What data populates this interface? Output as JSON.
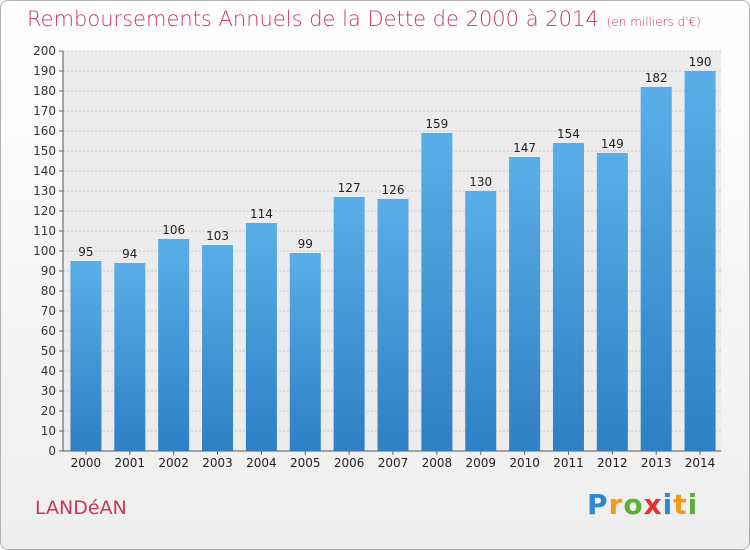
{
  "chart_data": {
    "type": "bar",
    "title": "Remboursements Annuels de la Dette de 2000 à 2014",
    "unit_label": "(en milliers d'€)",
    "categories": [
      "2000",
      "2001",
      "2002",
      "2003",
      "2004",
      "2005",
      "2006",
      "2007",
      "2008",
      "2009",
      "2010",
      "2011",
      "2012",
      "2013",
      "2014"
    ],
    "values": [
      95,
      94,
      106,
      103,
      114,
      99,
      127,
      126,
      159,
      130,
      147,
      154,
      149,
      182,
      190
    ],
    "ylim": [
      0,
      200
    ],
    "ytick_step": 10,
    "xlabel": "",
    "ylabel": "",
    "grid": true,
    "bar_color": "#3a8fd6"
  },
  "footer": {
    "commune": "LANDéAN",
    "brand_letters": [
      {
        "ch": "P",
        "color": "#2d8ad0"
      },
      {
        "ch": "r",
        "color": "#f29a1b"
      },
      {
        "ch": "o",
        "color": "#5bb030"
      },
      {
        "ch": "x",
        "color": "#e2332c"
      },
      {
        "ch": "i",
        "color": "#2d8ad0"
      },
      {
        "ch": "t",
        "color": "#f29a1b"
      },
      {
        "ch": "i",
        "color": "#5bb030"
      }
    ]
  }
}
